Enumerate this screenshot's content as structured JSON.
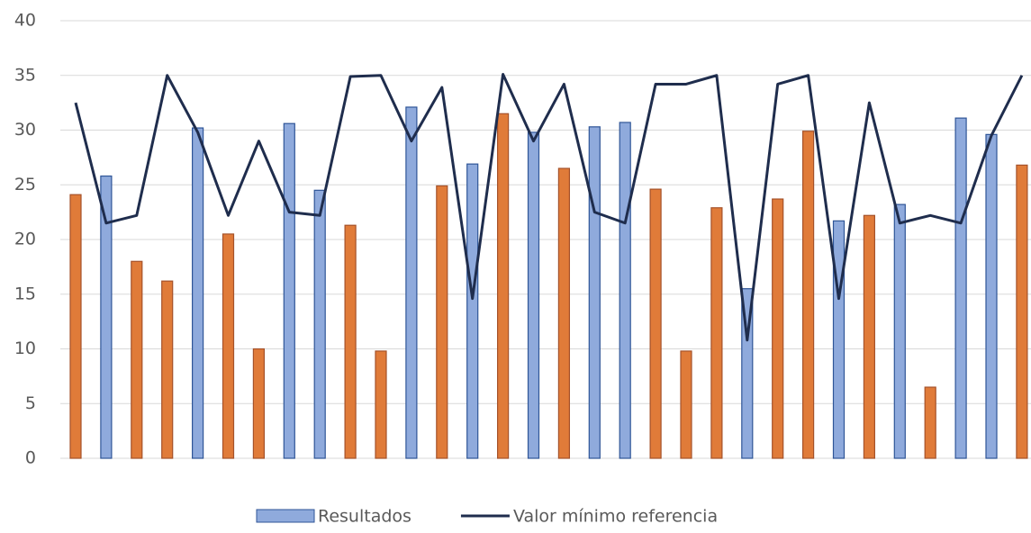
{
  "chart_data": {
    "type": "bar_line",
    "categories": [
      null,
      null,
      null,
      null,
      null,
      null,
      null,
      null,
      null,
      null,
      null,
      null,
      null,
      null,
      null,
      null,
      null,
      null,
      null,
      null,
      null,
      null,
      null,
      null,
      null,
      null,
      null,
      null,
      null,
      null,
      null,
      null
    ],
    "series": [
      {
        "name": "Resultados",
        "type": "bar",
        "color": "#8faadc",
        "colors": [
          "#e07b39",
          "#8faadc",
          "#e07b39",
          "#e07b39",
          "#8faadc",
          "#e07b39",
          "#e07b39",
          "#8faadc",
          "#8faadc",
          "#e07b39",
          "#e07b39",
          "#8faadc",
          "#e07b39",
          "#8faadc",
          "#e07b39",
          "#8faadc",
          "#e07b39",
          "#8faadc",
          "#8faadc",
          "#e07b39",
          "#e07b39",
          "#e07b39",
          "#8faadc",
          "#e07b39",
          "#e07b39",
          "#8faadc",
          "#e07b39",
          "#8faadc",
          "#e07b39",
          "#8faadc",
          "#8faadc",
          "#e07b39"
        ],
        "values": [
          24.1,
          25.8,
          18,
          16.2,
          30.2,
          20.5,
          10,
          30.6,
          24.5,
          21.3,
          9.8,
          32.1,
          24.9,
          26.9,
          31.5,
          29.8,
          26.5,
          30.3,
          30.7,
          24.6,
          9.8,
          22.9,
          15.5,
          23.7,
          29.9,
          21.7,
          22.2,
          23.2,
          6.5,
          31.1,
          29.6,
          26.8
        ]
      },
      {
        "name": "Valor mínimo referencia",
        "type": "line",
        "color": "#1f2d4d",
        "values": [
          32.5,
          21.5,
          22.2,
          35,
          29.8,
          22.2,
          29,
          22.5,
          22.2,
          34.9,
          35,
          29,
          33.9,
          14.6,
          35.1,
          29,
          34.2,
          22.5,
          21.5,
          34.2,
          34.2,
          35,
          10.8,
          34.2,
          35,
          14.6,
          32.5,
          21.5,
          22.2,
          21.5,
          29.5,
          35
        ]
      }
    ],
    "ylim": [
      0,
      40
    ],
    "yticks": [
      0,
      5,
      10,
      15,
      20,
      25,
      30,
      35,
      40
    ],
    "grid": true,
    "legend": "bottom"
  }
}
